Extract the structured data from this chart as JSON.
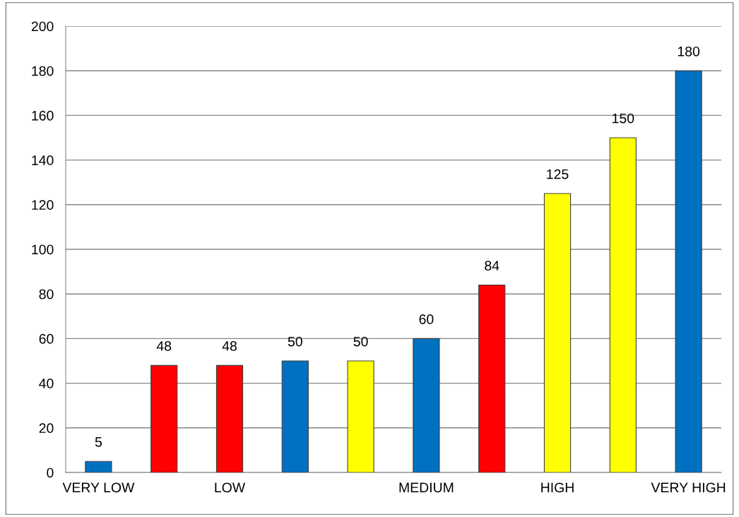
{
  "chart_data": {
    "type": "bar",
    "categories": [
      "VERY LOW",
      null,
      "LOW",
      null,
      null,
      "MEDIUM",
      null,
      "HIGH",
      null,
      "VERY HIGH"
    ],
    "values": [
      5,
      48,
      48,
      50,
      50,
      60,
      84,
      125,
      150,
      180
    ],
    "colors": [
      "#0070c0",
      "#ff0000",
      "#ff0000",
      "#0070c0",
      "#ffff00",
      "#0070c0",
      "#ff0000",
      "#ffff00",
      "#ffff00",
      "#0070c0"
    ],
    "ylim": [
      0,
      200
    ],
    "yticks": [
      0,
      20,
      40,
      60,
      80,
      100,
      120,
      140,
      160,
      180,
      200
    ],
    "grid": "y",
    "data_labels": true
  }
}
